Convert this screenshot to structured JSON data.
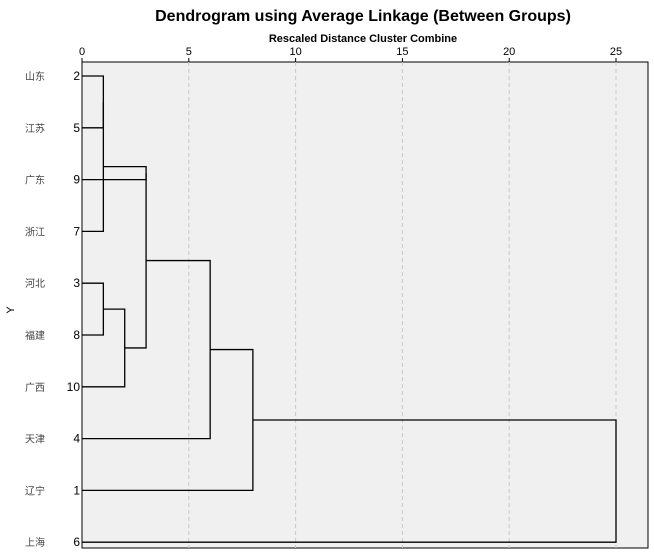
{
  "chart_data": {
    "type": "dendrogram",
    "title": "Dendrogram using Average Linkage (Between Groups)",
    "xlabel": "Rescaled Distance Cluster Combine",
    "ylabel": "Y",
    "xlim": [
      0,
      25
    ],
    "x_ticks": [
      0,
      5,
      10,
      15,
      20,
      25
    ],
    "grid": true,
    "leaves": [
      {
        "name": "山东",
        "id": "2"
      },
      {
        "name": "江苏",
        "id": "5"
      },
      {
        "name": "广东",
        "id": "9"
      },
      {
        "name": "浙江",
        "id": "7"
      },
      {
        "name": "河北",
        "id": "3"
      },
      {
        "name": "福建",
        "id": "8"
      },
      {
        "name": "广西",
        "id": "10"
      },
      {
        "name": "天津",
        "id": "4"
      },
      {
        "name": "辽宁",
        "id": "1"
      },
      {
        "name": "上海",
        "id": "6"
      }
    ],
    "merges": [
      {
        "children": [
          "L0",
          "L1"
        ],
        "height": 1,
        "id": "A"
      },
      {
        "children": [
          "A",
          "L3"
        ],
        "height": 1,
        "id": "B"
      },
      {
        "children": [
          "L4",
          "L5"
        ],
        "height": 1,
        "id": "C"
      },
      {
        "children": [
          "C",
          "L6"
        ],
        "height": 2,
        "id": "D"
      },
      {
        "children": [
          "L2",
          "B"
        ],
        "height": 3,
        "id": "E"
      },
      {
        "children": [
          "E",
          "D"
        ],
        "height": 3,
        "id": "F"
      },
      {
        "children": [
          "F",
          "L7"
        ],
        "height": 6,
        "id": "G"
      },
      {
        "children": [
          "G",
          "L8"
        ],
        "height": 8,
        "id": "H"
      },
      {
        "children": [
          "H",
          "L9"
        ],
        "height": 25,
        "id": "I"
      }
    ]
  }
}
